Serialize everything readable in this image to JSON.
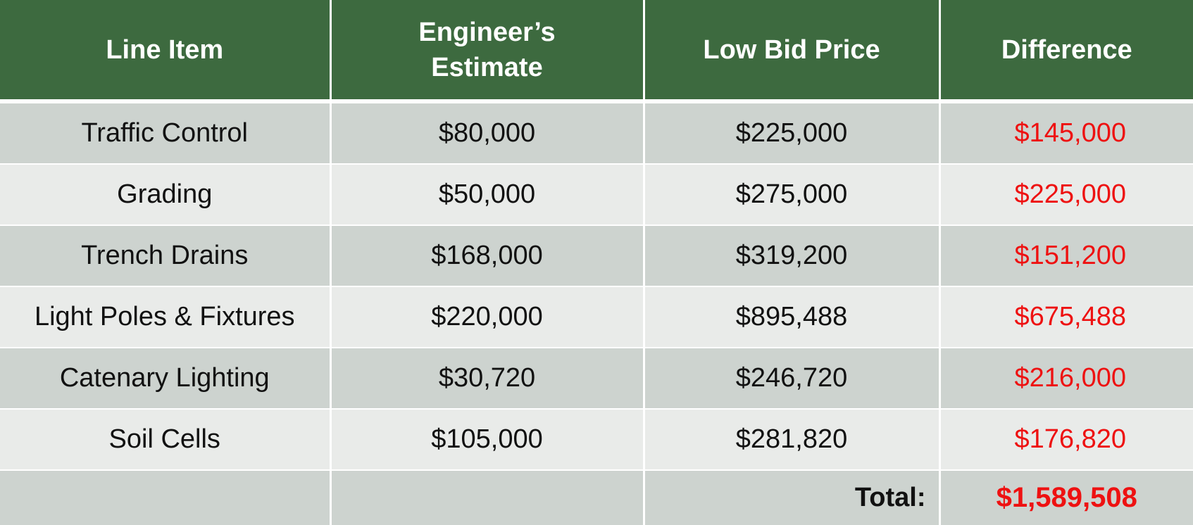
{
  "table": {
    "headers": [
      "Line Item",
      "Engineer’s Estimate",
      "Low Bid Price",
      "Difference"
    ],
    "rows": [
      {
        "item": "Traffic Control",
        "estimate": "$80,000",
        "low_bid": "$225,000",
        "difference": "$145,000"
      },
      {
        "item": "Grading",
        "estimate": "$50,000",
        "low_bid": "$275,000",
        "difference": "$225,000"
      },
      {
        "item": "Trench Drains",
        "estimate": "$168,000",
        "low_bid": "$319,200",
        "difference": "$151,200"
      },
      {
        "item": "Light Poles & Fixtures",
        "estimate": "$220,000",
        "low_bid": "$895,488",
        "difference": "$675,488"
      },
      {
        "item": "Catenary Lighting",
        "estimate": "$30,720",
        "low_bid": "$246,720",
        "difference": "$216,000"
      },
      {
        "item": "Soil Cells",
        "estimate": "$105,000",
        "low_bid": "$281,820",
        "difference": "$176,820"
      }
    ],
    "total_label": "Total:",
    "total_value": "$1,589,508"
  },
  "colors": {
    "header_bg": "#3d6a3f",
    "row_dark": "#cdd3cf",
    "row_light": "#e9ebe9",
    "difference_text": "#ee1111"
  }
}
